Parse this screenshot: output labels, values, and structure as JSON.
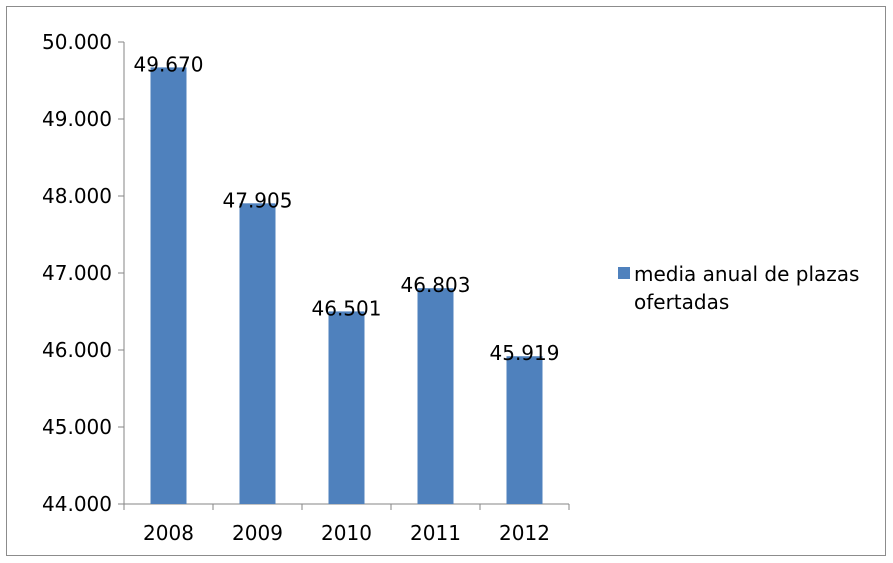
{
  "chart_data": {
    "type": "bar",
    "categories": [
      "2008",
      "2009",
      "2010",
      "2011",
      "2012"
    ],
    "values": [
      49670,
      47905,
      46501,
      46803,
      45919
    ],
    "data_labels": [
      "49.670",
      "47.905",
      "46.501",
      "46.803",
      "45.919"
    ],
    "series": [
      {
        "name": "media anual de plazas ofertadas",
        "values": [
          49670,
          47905,
          46501,
          46803,
          45919
        ]
      }
    ],
    "y_ticks": [
      {
        "value": 44000,
        "label": "44.000"
      },
      {
        "value": 45000,
        "label": "45.000"
      },
      {
        "value": 46000,
        "label": "46.000"
      },
      {
        "value": 47000,
        "label": "47.000"
      },
      {
        "value": 48000,
        "label": "48.000"
      },
      {
        "value": 49000,
        "label": "49.000"
      },
      {
        "value": 50000,
        "label": "50.000"
      }
    ],
    "ylim": [
      44000,
      50000
    ],
    "grid": false,
    "legend_position": "right",
    "bar_color": "#4f81bd"
  }
}
